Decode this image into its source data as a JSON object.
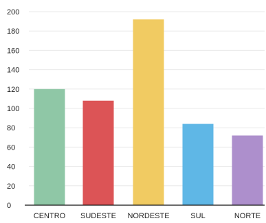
{
  "chart_data": {
    "type": "bar",
    "title": "",
    "xlabel": "",
    "ylabel": "",
    "categories": [
      "CENTRO",
      "SUDESTE",
      "NORDESTE",
      "SUL",
      "NORTE"
    ],
    "values": [
      120,
      108,
      192,
      84,
      72
    ],
    "colors": [
      "#8fc7a6",
      "#dc5456",
      "#f1cb62",
      "#5fb7e6",
      "#ad8fcc"
    ],
    "ylim": [
      0,
      200
    ],
    "yticks": [
      0,
      20,
      40,
      60,
      80,
      100,
      120,
      140,
      160,
      180,
      200
    ],
    "grid": true,
    "legend": "none"
  }
}
